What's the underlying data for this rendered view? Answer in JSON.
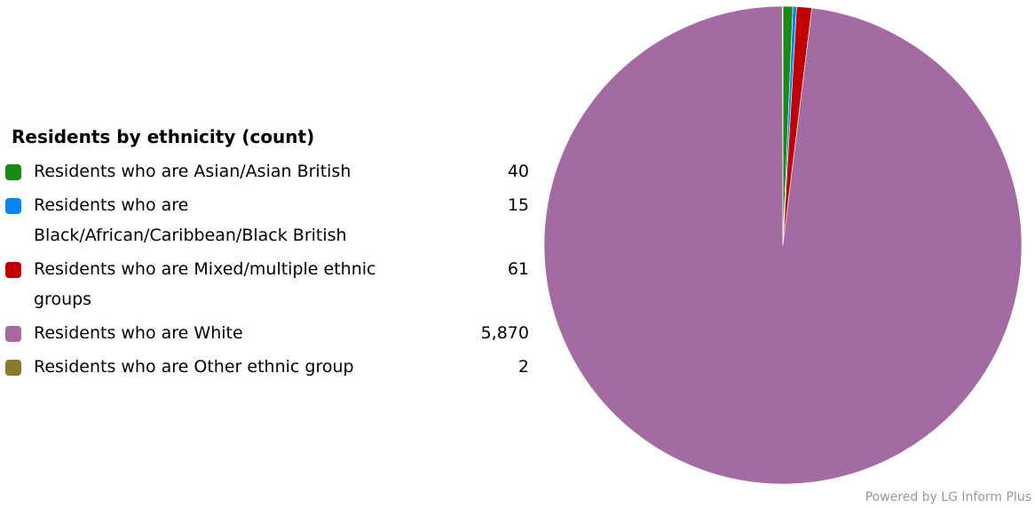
{
  "chart_data": {
    "type": "pie",
    "title": "Residents by ethnicity (count)",
    "slices": [
      {
        "label": "Residents who are Asian/Asian British",
        "value": 40,
        "value_label": "40",
        "color": "#1a8a14"
      },
      {
        "label": "Residents who are Black/African/Caribbean/Black British",
        "value": 15,
        "value_label": "15",
        "color": "#0a84f5"
      },
      {
        "label": "Residents who are Mixed/multiple ethnic groups",
        "value": 61,
        "value_label": "61",
        "color": "#c00000"
      },
      {
        "label": "Residents who are White",
        "value": 5870,
        "value_label": "5,870",
        "color": "#a46ba2"
      },
      {
        "label": "Residents who are Other ethnic group",
        "value": 2,
        "value_label": "2",
        "color": "#8a7a2e"
      }
    ],
    "legend_position": "left"
  },
  "footer": {
    "credit": "Powered by LG Inform Plus"
  }
}
